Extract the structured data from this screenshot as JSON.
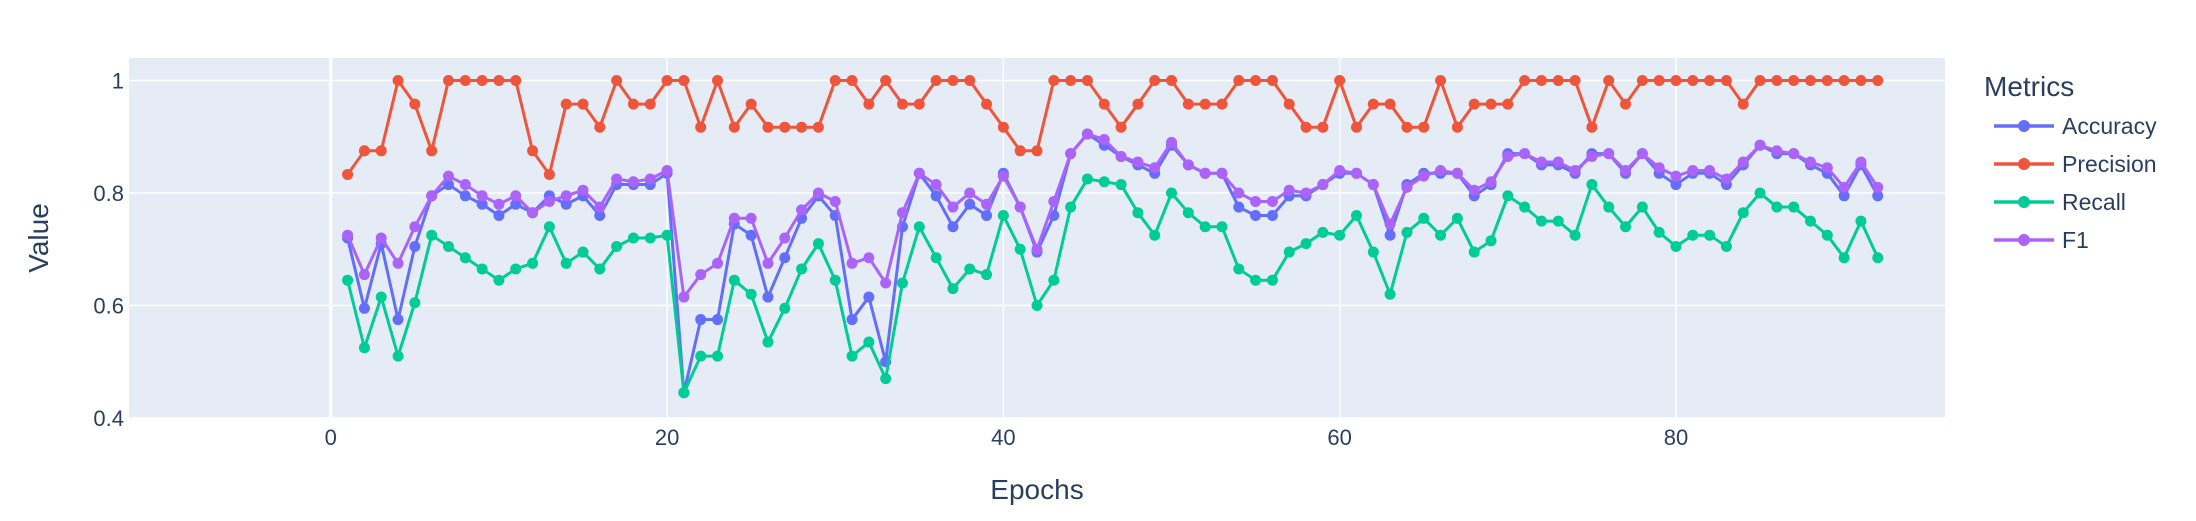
{
  "chart_data": {
    "type": "line",
    "xlabel": "Epochs",
    "ylabel": "Value",
    "xlim": [
      -12,
      96
    ],
    "ylim": [
      0.4,
      1.04
    ],
    "xticks": [
      0,
      20,
      40,
      60,
      80
    ],
    "yticks": [
      0.4,
      0.6,
      0.8,
      1
    ],
    "grid": true,
    "legend_title": "Metrics",
    "legend_position": "right",
    "x": [
      1,
      2,
      3,
      4,
      5,
      6,
      7,
      8,
      9,
      10,
      11,
      12,
      13,
      14,
      15,
      16,
      17,
      18,
      19,
      20,
      21,
      22,
      23,
      24,
      25,
      26,
      27,
      28,
      29,
      30,
      31,
      32,
      33,
      34,
      35,
      36,
      37,
      38,
      39,
      40,
      41,
      42,
      43,
      44,
      45,
      46,
      47,
      48,
      49,
      50,
      51,
      52,
      53,
      54,
      55,
      56,
      57,
      58,
      59,
      60,
      61,
      62,
      63,
      64,
      65,
      66,
      67,
      68,
      69,
      70,
      71,
      72,
      73,
      74,
      75,
      76,
      77,
      78,
      79,
      80,
      81,
      82,
      83,
      84,
      85,
      86,
      87,
      88,
      89,
      90,
      91,
      92
    ],
    "series": [
      {
        "name": "Accuracy",
        "color": "#636efa",
        "values": [
          0.72,
          0.595,
          0.71,
          0.575,
          0.705,
          0.795,
          0.815,
          0.795,
          0.78,
          0.76,
          0.78,
          0.765,
          0.795,
          0.78,
          0.795,
          0.76,
          0.815,
          0.815,
          0.815,
          0.835,
          0.445,
          0.575,
          0.575,
          0.745,
          0.725,
          0.615,
          0.685,
          0.755,
          0.795,
          0.76,
          0.575,
          0.615,
          0.5,
          0.74,
          0.835,
          0.795,
          0.74,
          0.78,
          0.76,
          0.835,
          0.775,
          0.695,
          0.76,
          0.87,
          0.905,
          0.885,
          0.865,
          0.85,
          0.835,
          0.885,
          0.85,
          0.835,
          0.835,
          0.775,
          0.76,
          0.76,
          0.795,
          0.795,
          0.815,
          0.835,
          0.835,
          0.815,
          0.725,
          0.815,
          0.835,
          0.835,
          0.835,
          0.795,
          0.815,
          0.87,
          0.87,
          0.85,
          0.85,
          0.835,
          0.87,
          0.87,
          0.835,
          0.87,
          0.835,
          0.815,
          0.835,
          0.835,
          0.815,
          0.85,
          0.885,
          0.87,
          0.87,
          0.85,
          0.835,
          0.795,
          0.85,
          0.795
        ]
      },
      {
        "name": "Precision",
        "color": "#ef553b",
        "values": [
          0.833,
          0.875,
          0.875,
          1.0,
          0.958,
          0.875,
          1.0,
          1.0,
          1.0,
          1.0,
          1.0,
          0.875,
          0.833,
          0.958,
          0.958,
          0.917,
          1.0,
          0.958,
          0.958,
          1.0,
          1.0,
          0.917,
          1.0,
          0.917,
          0.958,
          0.917,
          0.917,
          0.917,
          0.917,
          1.0,
          1.0,
          0.958,
          1.0,
          0.958,
          0.958,
          1.0,
          1.0,
          1.0,
          0.958,
          0.917,
          0.875,
          0.875,
          1.0,
          1.0,
          1.0,
          0.958,
          0.917,
          0.958,
          1.0,
          1.0,
          0.958,
          0.958,
          0.958,
          1.0,
          1.0,
          1.0,
          0.958,
          0.917,
          0.917,
          1.0,
          0.917,
          0.958,
          0.958,
          0.917,
          0.917,
          1.0,
          0.917,
          0.958,
          0.958,
          0.958,
          1.0,
          1.0,
          1.0,
          1.0,
          0.917,
          1.0,
          0.958,
          1.0,
          1.0,
          1.0,
          1.0,
          1.0,
          1.0,
          0.958,
          1.0,
          1.0,
          1.0,
          1.0,
          1.0,
          1.0,
          1.0,
          1.0
        ]
      },
      {
        "name": "Recall",
        "color": "#00cc96",
        "values": [
          0.645,
          0.525,
          0.615,
          0.51,
          0.605,
          0.725,
          0.705,
          0.685,
          0.665,
          0.645,
          0.665,
          0.675,
          0.74,
          0.675,
          0.695,
          0.665,
          0.705,
          0.72,
          0.72,
          0.725,
          0.445,
          0.51,
          0.51,
          0.645,
          0.62,
          0.535,
          0.595,
          0.665,
          0.71,
          0.645,
          0.51,
          0.535,
          0.47,
          0.64,
          0.74,
          0.685,
          0.63,
          0.665,
          0.655,
          0.76,
          0.7,
          0.6,
          0.645,
          0.775,
          0.825,
          0.82,
          0.815,
          0.765,
          0.725,
          0.8,
          0.765,
          0.74,
          0.74,
          0.665,
          0.645,
          0.645,
          0.695,
          0.71,
          0.73,
          0.725,
          0.76,
          0.695,
          0.62,
          0.73,
          0.755,
          0.725,
          0.755,
          0.695,
          0.715,
          0.795,
          0.775,
          0.75,
          0.75,
          0.725,
          0.815,
          0.775,
          0.74,
          0.775,
          0.73,
          0.705,
          0.725,
          0.725,
          0.705,
          0.765,
          0.8,
          0.775,
          0.775,
          0.75,
          0.725,
          0.685,
          0.75,
          0.685
        ]
      },
      {
        "name": "F1",
        "color": "#ab63fa",
        "values": [
          0.725,
          0.655,
          0.72,
          0.675,
          0.74,
          0.795,
          0.83,
          0.815,
          0.795,
          0.78,
          0.795,
          0.765,
          0.785,
          0.795,
          0.805,
          0.775,
          0.825,
          0.82,
          0.825,
          0.84,
          0.615,
          0.655,
          0.675,
          0.755,
          0.755,
          0.675,
          0.72,
          0.77,
          0.8,
          0.785,
          0.675,
          0.685,
          0.64,
          0.765,
          0.835,
          0.815,
          0.775,
          0.8,
          0.78,
          0.83,
          0.775,
          0.7,
          0.785,
          0.87,
          0.905,
          0.895,
          0.865,
          0.855,
          0.845,
          0.89,
          0.85,
          0.835,
          0.835,
          0.8,
          0.785,
          0.785,
          0.805,
          0.8,
          0.815,
          0.84,
          0.835,
          0.815,
          0.745,
          0.81,
          0.83,
          0.84,
          0.835,
          0.805,
          0.82,
          0.865,
          0.87,
          0.855,
          0.855,
          0.84,
          0.865,
          0.87,
          0.84,
          0.87,
          0.845,
          0.83,
          0.84,
          0.84,
          0.825,
          0.855,
          0.885,
          0.875,
          0.87,
          0.855,
          0.845,
          0.81,
          0.855,
          0.81
        ]
      }
    ]
  }
}
